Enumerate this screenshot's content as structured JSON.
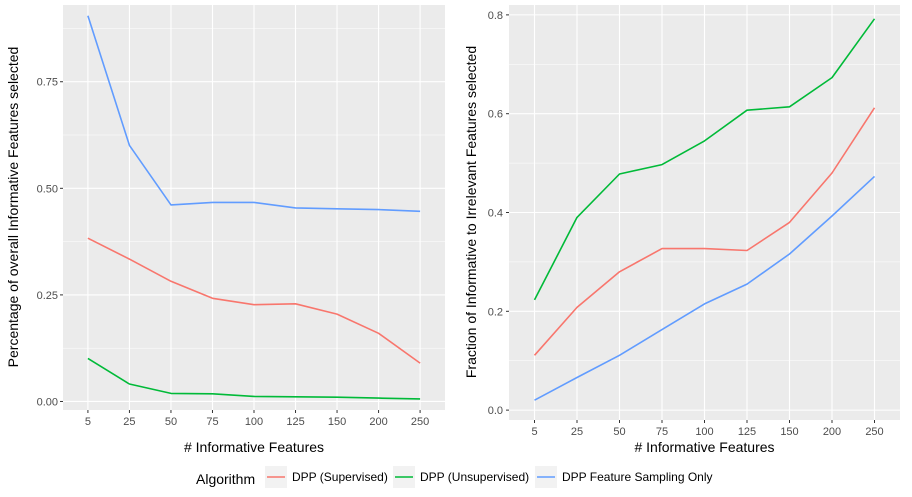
{
  "chart_data": [
    {
      "type": "line",
      "xlabel": "# Informative Features",
      "ylabel": "Percentage of overall Informative Features selected",
      "categories": [
        "5",
        "25",
        "50",
        "75",
        "100",
        "125",
        "150",
        "200",
        "250"
      ],
      "ylim": [
        -0.02,
        0.93
      ],
      "yticks": [
        "0.00",
        "0.25",
        "0.50",
        "0.75"
      ],
      "ytick_values": [
        0,
        0.25,
        0.5,
        0.75
      ],
      "grid": true,
      "series": [
        {
          "name": "DPP (Supervised)",
          "values": [
            0.383,
            0.334,
            0.282,
            0.242,
            0.227,
            0.229,
            0.205,
            0.16,
            0.09
          ]
        },
        {
          "name": "DPP (Unsupervised)",
          "values": [
            0.101,
            0.041,
            0.019,
            0.018,
            0.012,
            0.011,
            0.01,
            0.008,
            0.006
          ]
        },
        {
          "name": "DPP Feature Sampling Only",
          "values": [
            0.905,
            0.601,
            0.461,
            0.467,
            0.467,
            0.454,
            0.452,
            0.45,
            0.446
          ]
        }
      ]
    },
    {
      "type": "line",
      "xlabel": "# Informative Features",
      "ylabel": "Fraction of Informative to Irrelevant Features selected",
      "categories": [
        "5",
        "25",
        "50",
        "75",
        "100",
        "125",
        "150",
        "200",
        "250"
      ],
      "ylim": [
        -0.02,
        0.82
      ],
      "yticks": [
        "0.0",
        "0.2",
        "0.4",
        "0.6",
        "0.8"
      ],
      "ytick_values": [
        0,
        0.2,
        0.4,
        0.6,
        0.8
      ],
      "grid": true,
      "series": [
        {
          "name": "DPP (Supervised)",
          "values": [
            0.111,
            0.208,
            0.28,
            0.327,
            0.327,
            0.323,
            0.38,
            0.48,
            0.612
          ]
        },
        {
          "name": "DPP (Unsupervised)",
          "values": [
            0.223,
            0.39,
            0.478,
            0.497,
            0.545,
            0.607,
            0.614,
            0.673,
            0.792
          ]
        },
        {
          "name": "DPP Feature Sampling Only",
          "values": [
            0.02,
            0.066,
            0.111,
            0.163,
            0.215,
            0.255,
            0.316,
            0.393,
            0.473
          ]
        }
      ]
    }
  ],
  "legend": {
    "title": "Algorithm",
    "position": "bottom",
    "items": [
      {
        "label": "DPP (Supervised)",
        "color": "#F8766D"
      },
      {
        "label": "DPP (Unsupervised)",
        "color": "#00BA38"
      },
      {
        "label": "DPP Feature Sampling Only",
        "color": "#619CFF"
      }
    ]
  },
  "colors": {
    "panel_background": "#EBEBEB",
    "grid_major": "#FFFFFF",
    "series": [
      "#F8766D",
      "#00BA38",
      "#619CFF"
    ]
  }
}
